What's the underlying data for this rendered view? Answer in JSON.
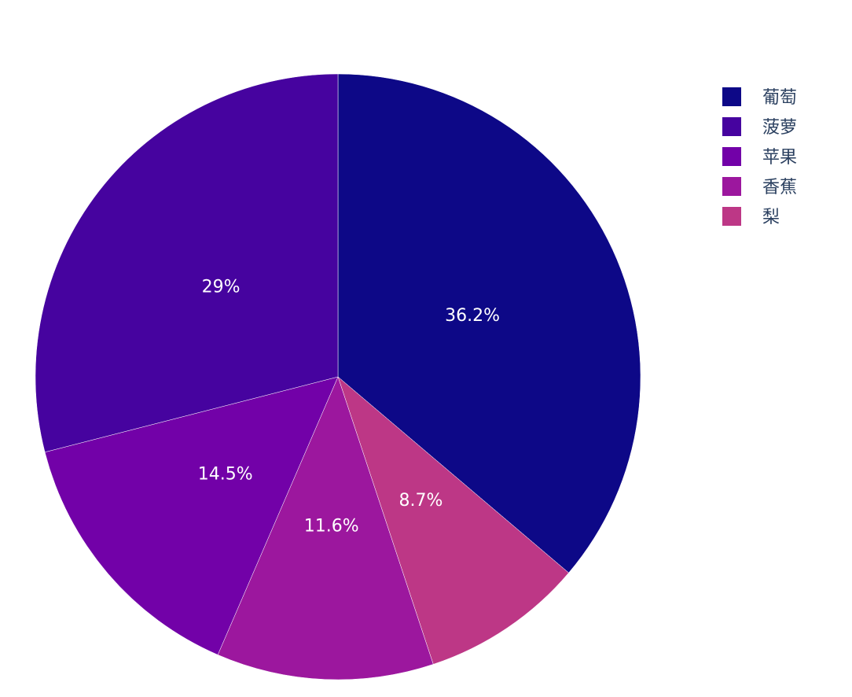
{
  "chart_data": {
    "type": "pie",
    "title": "",
    "labels": [
      "葡萄",
      "菠萝",
      "苹果",
      "香蕉",
      "梨"
    ],
    "values": [
      36.2,
      29.0,
      14.5,
      11.6,
      8.7
    ],
    "percent_labels": [
      "36.2%",
      "29%",
      "14.5%",
      "11.6%",
      "8.7%"
    ],
    "slice_order_clockwise_from_top": [
      "葡萄",
      "梨",
      "香蕉",
      "苹果",
      "菠萝"
    ],
    "colors": [
      "#0d0887",
      "#46039f",
      "#7201a8",
      "#9c179e",
      "#bd3786"
    ],
    "legend_position": "top-right",
    "legend": [
      {
        "label": "葡萄",
        "color": "#0d0887"
      },
      {
        "label": "菠萝",
        "color": "#46039f"
      },
      {
        "label": "苹果",
        "color": "#7201a8"
      },
      {
        "label": "香蕉",
        "color": "#9c179e"
      },
      {
        "label": "梨",
        "color": "#bd3786"
      }
    ]
  }
}
